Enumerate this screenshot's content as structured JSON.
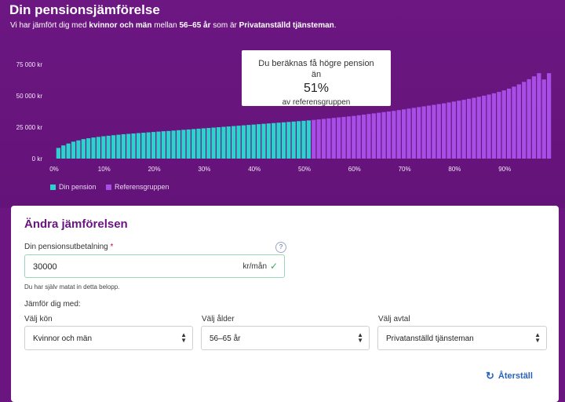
{
  "header": {
    "title": "Din pensionsjämförelse",
    "subtitle_prefix": "Vi har jämfört dig med ",
    "subtitle_group": "kvinnor och män",
    "subtitle_mid": " mellan ",
    "subtitle_age": "56–65 år",
    "subtitle_mid2": " som är ",
    "subtitle_type": "Privatanställd tjänsteman",
    "subtitle_end": "."
  },
  "tooltip": {
    "line1": "Du beräknas få högre pension",
    "line2": "än",
    "percent": "51%",
    "line3": "av referensgruppen"
  },
  "legend": {
    "yours": "Din pension",
    "reference": "Referensgruppen"
  },
  "colors": {
    "yours": "#2dd2cf",
    "reference": "#a64ee6",
    "background": "#6a1580",
    "accent": "#6a1580",
    "link": "#2b62b6"
  },
  "chart_data": {
    "type": "bar",
    "x_unit": "percentile",
    "xlim": [
      0,
      100
    ],
    "ylim": [
      0,
      75000
    ],
    "y_ticks": [
      "0 kr",
      "25 000 kr",
      "50 000 kr",
      "75 000 kr"
    ],
    "y_tick_values": [
      0,
      25000,
      50000,
      75000
    ],
    "x_ticks": [
      "0%",
      "10%",
      "20%",
      "30%",
      "40%",
      "50%",
      "60%",
      "70%",
      "80%",
      "90%"
    ],
    "x_tick_values": [
      0,
      10,
      20,
      30,
      40,
      50,
      60,
      70,
      80,
      90
    ],
    "highlight_until_percentile": 51,
    "series": [
      {
        "name": "Referensgruppen",
        "x": [
          1,
          2,
          3,
          4,
          5,
          6,
          7,
          8,
          9,
          10,
          11,
          12,
          13,
          14,
          15,
          16,
          17,
          18,
          19,
          20,
          21,
          22,
          23,
          24,
          25,
          26,
          27,
          28,
          29,
          30,
          31,
          32,
          33,
          34,
          35,
          36,
          37,
          38,
          39,
          40,
          41,
          42,
          43,
          44,
          45,
          46,
          47,
          48,
          49,
          50,
          51,
          52,
          53,
          54,
          55,
          56,
          57,
          58,
          59,
          60,
          61,
          62,
          63,
          64,
          65,
          66,
          67,
          68,
          69,
          70,
          71,
          72,
          73,
          74,
          75,
          76,
          77,
          78,
          79,
          80,
          81,
          82,
          83,
          84,
          85,
          86,
          87,
          88,
          89,
          90,
          91,
          92,
          93,
          94,
          95,
          96,
          97,
          98,
          99
        ],
        "values": [
          8500,
          10500,
          12000,
          13500,
          14500,
          15500,
          16200,
          16800,
          17300,
          17800,
          18200,
          18600,
          19000,
          19400,
          19700,
          20000,
          20300,
          20600,
          20900,
          21200,
          21500,
          21800,
          22000,
          22300,
          22600,
          22900,
          23200,
          23500,
          23800,
          24100,
          24400,
          24700,
          25000,
          25300,
          25600,
          25900,
          26200,
          26500,
          26800,
          27100,
          27400,
          27700,
          28000,
          28300,
          28600,
          28900,
          29200,
          29500,
          29800,
          30100,
          30400,
          30800,
          31200,
          31600,
          32000,
          32400,
          32800,
          33200,
          33600,
          34000,
          34500,
          35000,
          35500,
          36000,
          36500,
          37000,
          37500,
          38000,
          38600,
          39200,
          39800,
          40400,
          41000,
          41600,
          42200,
          42800,
          43400,
          44000,
          44700,
          45400,
          46100,
          46800,
          47600,
          48400,
          49200,
          50100,
          51000,
          52000,
          53100,
          54300,
          55700,
          57300,
          59100,
          61100,
          63200,
          65500,
          68000,
          63000,
          68000
        ]
      }
    ]
  },
  "form": {
    "title": "Ändra jämförelsen",
    "amount_label": "Din pensionsutbetalning",
    "required_mark": "*",
    "help": "?",
    "amount_value": "30000",
    "amount_unit": "kr/mån",
    "hint": "Du har själv matat in detta belopp.",
    "compare_label": "Jämför dig med:",
    "gender_label": "Välj kön",
    "gender_value": "Kvinnor och män",
    "age_label": "Välj ålder",
    "age_value": "56–65 år",
    "type_label": "Välj avtal",
    "type_value": "Privatanställd tjänsteman",
    "reset_label": "Återställ"
  }
}
